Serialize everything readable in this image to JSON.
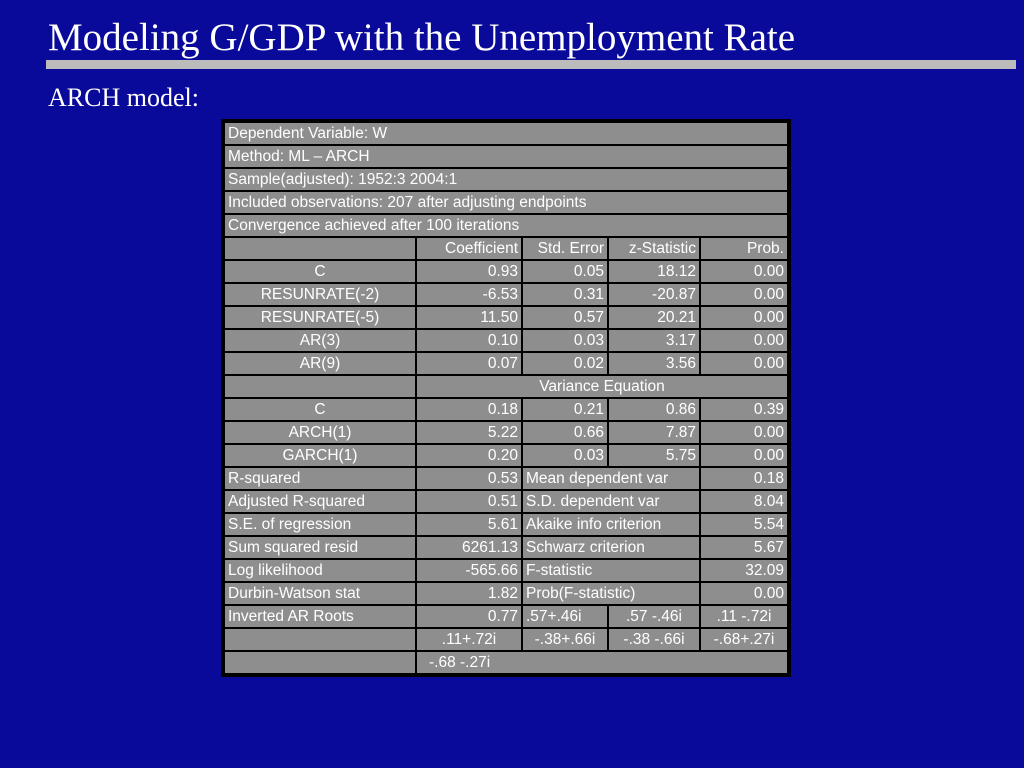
{
  "slide": {
    "title": "Modeling G/GDP with the Unemployment Rate",
    "subtitle": "ARCH model:"
  },
  "table": {
    "info_rows": [
      "Dependent Variable: W",
      "Method: ML – ARCH",
      "Sample(adjusted): 1952:3 2004:1",
      "Included observations: 207 after adjusting endpoints",
      "Convergence achieved after 100 iterations"
    ],
    "headers": [
      "",
      "Coefficient",
      "Std. Error",
      "z-Statistic",
      "Prob."
    ],
    "mean_rows": [
      [
        "C",
        "0.93",
        "0.05",
        "18.12",
        "0.00"
      ],
      [
        "RESUNRATE(-2)",
        "-6.53",
        "0.31",
        "-20.87",
        "0.00"
      ],
      [
        "RESUNRATE(-5)",
        "11.50",
        "0.57",
        "20.21",
        "0.00"
      ],
      [
        "AR(3)",
        "0.10",
        "0.03",
        "3.17",
        "0.00"
      ],
      [
        "AR(9)",
        "0.07",
        "0.02",
        "3.56",
        "0.00"
      ]
    ],
    "variance_label": "Variance Equation",
    "variance_rows": [
      [
        "C",
        "0.18",
        "0.21",
        "0.86",
        "0.39"
      ],
      [
        "ARCH(1)",
        "5.22",
        "0.66",
        "7.87",
        "0.00"
      ],
      [
        "GARCH(1)",
        "0.20",
        "0.03",
        "5.75",
        "0.00"
      ]
    ],
    "stats_rows": [
      [
        "R-squared",
        "0.53",
        "Mean dependent var",
        "0.18"
      ],
      [
        "Adjusted R-squared",
        "0.51",
        "S.D. dependent var",
        "8.04"
      ],
      [
        "S.E. of regression",
        "5.61",
        "Akaike info criterion",
        "5.54"
      ],
      [
        "Sum squared resid",
        "6261.13",
        "Schwarz criterion",
        "5.67"
      ],
      [
        "Log likelihood",
        "-565.66",
        "F-statistic",
        "32.09"
      ],
      [
        "Durbin-Watson stat",
        "1.82",
        "Prob(F-statistic)",
        "0.00"
      ]
    ],
    "roots_label": "Inverted AR Roots",
    "roots_row1": [
      "0.77",
      ".57+.46i",
      ".57 -.46i",
      ".11 -.72i"
    ],
    "roots_row2": [
      ".11+.72i",
      "-.38+.66i",
      "-.38 -.66i",
      "-.68+.27i"
    ],
    "roots_row3": "-.68 -.27i"
  }
}
